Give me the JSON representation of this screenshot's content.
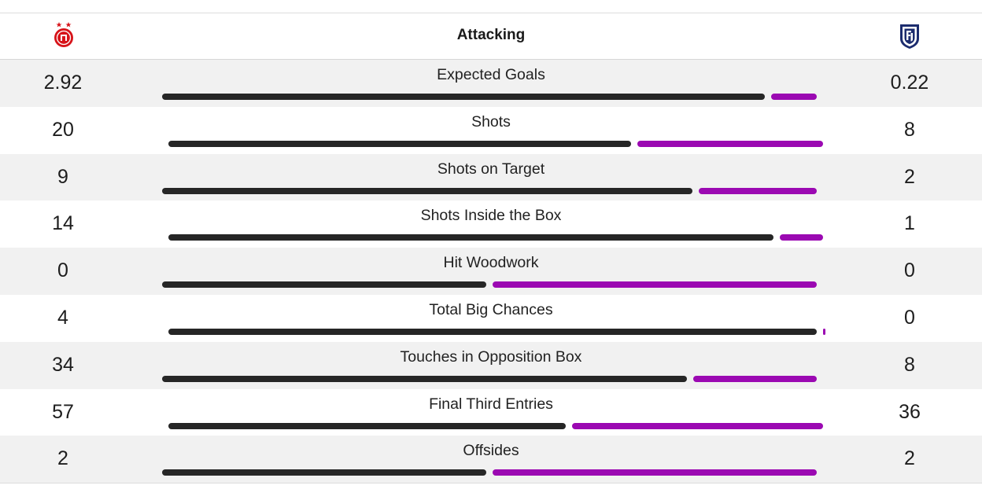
{
  "section": {
    "title": "Attacking"
  },
  "teams": {
    "home": {
      "crest_icon": "aberdeen-crest-icon",
      "bar_color": "#262626"
    },
    "away": {
      "crest_icon": "dundee-crest-icon",
      "bar_color": "#9b09b2"
    }
  },
  "stats": [
    {
      "label": "Expected Goals",
      "home": "2.92",
      "away": "0.22",
      "home_share": 0.93
    },
    {
      "label": "Shots",
      "home": "20",
      "away": "8",
      "home_share": 0.714
    },
    {
      "label": "Shots on Target",
      "home": "9",
      "away": "2",
      "home_share": 0.818
    },
    {
      "label": "Shots Inside the Box",
      "home": "14",
      "away": "1",
      "home_share": 0.933
    },
    {
      "label": "Hit Woodwork",
      "home": "0",
      "away": "0",
      "home_share": 0.5
    },
    {
      "label": "Total Big Chances",
      "home": "4",
      "away": "0",
      "home_share": 1.0
    },
    {
      "label": "Touches in Opposition Box",
      "home": "34",
      "away": "8",
      "home_share": 0.81
    },
    {
      "label": "Final Third Entries",
      "home": "57",
      "away": "36",
      "home_share": 0.613
    },
    {
      "label": "Offsides",
      "home": "2",
      "away": "2",
      "home_share": 0.5
    }
  ]
}
